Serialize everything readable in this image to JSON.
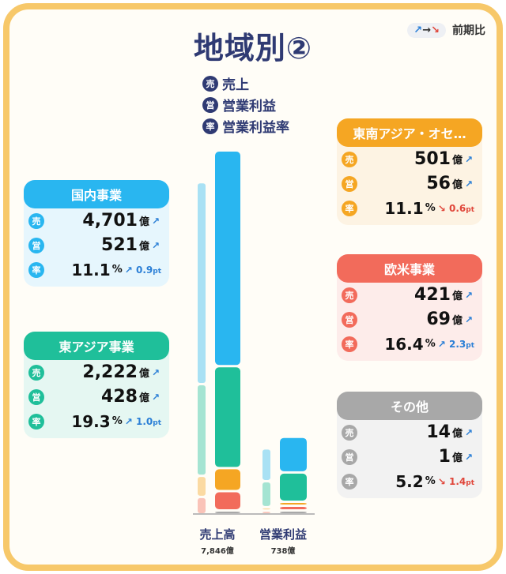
{
  "title": "地域別②",
  "legend_prev": {
    "arrows": "↗→↘",
    "label": "前期比"
  },
  "metric_legend": [
    {
      "badge": "売",
      "label": "売上"
    },
    {
      "badge": "営",
      "label": "営業利益"
    },
    {
      "badge": "率",
      "label": "営業利益率"
    }
  ],
  "cards": {
    "japan": {
      "title": "国内事業",
      "color": "#29b6f0",
      "bg": "#e6f6fd",
      "sales": "4,701",
      "op": "521",
      "rate": "11.1",
      "delta": "0.9",
      "delta_dir": "up",
      "sales_dir": "up",
      "op_dir": "up"
    },
    "east_asia": {
      "title": "東アジア事業",
      "color": "#1fbf9a",
      "bg": "#e5f7f2",
      "sales": "2,222",
      "op": "428",
      "rate": "19.3",
      "delta": "1.0",
      "delta_dir": "up",
      "sales_dir": "up",
      "op_dir": "up"
    },
    "sea": {
      "title": "東南アジア・オセ…",
      "color": "#f5a623",
      "bg": "#fdf3e3",
      "sales": "501",
      "op": "56",
      "rate": "11.1",
      "delta": "0.6",
      "delta_dir": "down",
      "sales_dir": "up",
      "op_dir": "up"
    },
    "us_eu": {
      "title": "欧米事業",
      "color": "#f26b5b",
      "bg": "#fdecea",
      "sales": "421",
      "op": "69",
      "rate": "16.4",
      "delta": "2.3",
      "delta_dir": "up",
      "sales_dir": "up",
      "op_dir": "up"
    },
    "other": {
      "title": "その他",
      "color": "#a8a8a8",
      "bg": "#f2f2f2",
      "sales": "14",
      "op": "1",
      "rate": "5.2",
      "delta": "1.4",
      "delta_dir": "down",
      "sales_dir": "up",
      "op_dir": "up"
    }
  },
  "units": {
    "oku": "億",
    "pct": "%",
    "pt": "pt",
    "badge_sales": "売",
    "badge_op": "営",
    "badge_rate": "率"
  },
  "chart_data": {
    "type": "bar",
    "stacked": true,
    "categories": [
      "売上高",
      "営業利益"
    ],
    "totals_text": [
      "7,846億",
      "738億"
    ],
    "series": [
      {
        "name": "その他",
        "color": "#a8a8a8",
        "values": [
          14,
          1
        ]
      },
      {
        "name": "欧米事業",
        "color": "#f26b5b",
        "values": [
          421,
          69
        ]
      },
      {
        "name": "東南アジア・オセ…",
        "color": "#f5a623",
        "values": [
          501,
          56
        ]
      },
      {
        "name": "東アジア事業",
        "color": "#1fbf9a",
        "values": [
          2222,
          428
        ]
      },
      {
        "name": "国内事業",
        "color": "#29b6f0",
        "values": [
          4701,
          521
        ]
      }
    ],
    "prev_values": {
      "売上高": [
        14,
        380,
        460,
        2000,
        4400
      ],
      "営業利益": [
        1,
        55,
        50,
        380,
        480
      ]
    }
  }
}
